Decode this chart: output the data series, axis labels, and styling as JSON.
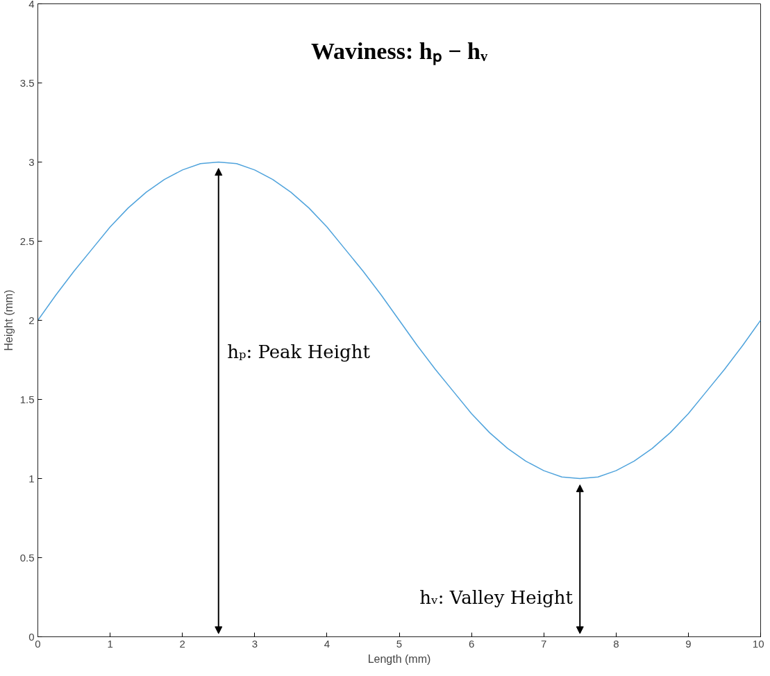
{
  "chart_data": {
    "type": "line",
    "title": "Waviness: hₚ − hᵥ",
    "xlabel": "Length (mm)",
    "ylabel": "Height (mm)",
    "x": [
      0,
      0.25,
      0.5,
      0.75,
      1,
      1.25,
      1.5,
      1.75,
      2,
      2.25,
      2.5,
      2.75,
      3,
      3.25,
      3.5,
      3.75,
      4,
      4.25,
      4.5,
      4.75,
      5,
      5.25,
      5.5,
      5.75,
      6,
      6.25,
      6.5,
      6.75,
      7,
      7.25,
      7.5,
      7.75,
      8,
      8.25,
      8.5,
      8.75,
      9,
      9.25,
      9.5,
      9.75,
      10
    ],
    "series": [
      {
        "color": "#4fa3dc",
        "values": [
          2,
          2.16,
          2.31,
          2.45,
          2.59,
          2.71,
          2.81,
          2.89,
          2.95,
          2.99,
          3,
          2.99,
          2.95,
          2.89,
          2.81,
          2.71,
          2.59,
          2.45,
          2.31,
          2.16,
          2,
          1.84,
          1.69,
          1.55,
          1.41,
          1.29,
          1.19,
          1.11,
          1.05,
          1.01,
          1,
          1.01,
          1.05,
          1.11,
          1.19,
          1.29,
          1.41,
          1.55,
          1.69,
          1.84,
          2
        ]
      }
    ],
    "xlim": [
      0,
      10
    ],
    "xticks": [
      0,
      1,
      2,
      3,
      4,
      5,
      6,
      7,
      8,
      9,
      10
    ],
    "ylim": [
      0,
      4
    ],
    "yticks": [
      0,
      0.5,
      1,
      1.5,
      2,
      2.5,
      3,
      3.5,
      4
    ],
    "grid": false,
    "marker": "none",
    "line_style": "solid",
    "annotations": [
      "hₚ: Peak Height",
      "hᵥ: Valley Height"
    ]
  }
}
